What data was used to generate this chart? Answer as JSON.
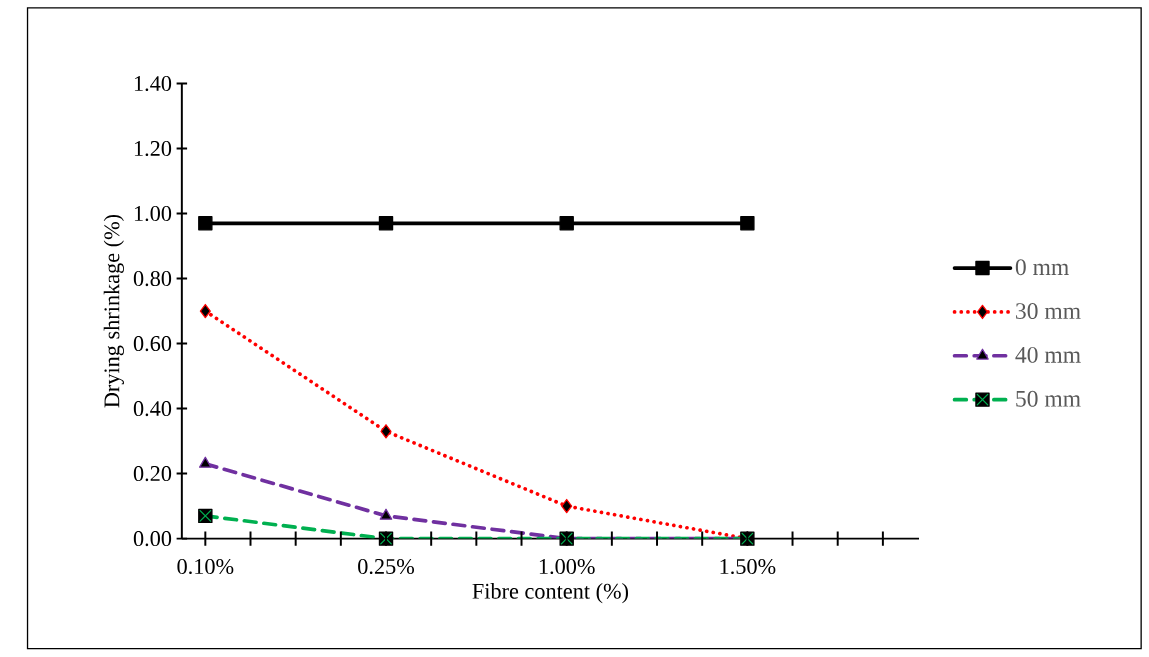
{
  "chart_data": {
    "type": "line",
    "xlabel": "Fibre content (%)",
    "ylabel": "Drying shrinkage (%)",
    "categories": [
      "0.10%",
      "0.25%",
      "1.00%",
      "1.50%"
    ],
    "ylim": [
      0,
      1.4
    ],
    "yticks": [
      {
        "value": 0,
        "label": "0.00"
      },
      {
        "value": 0.2,
        "label": "0.20"
      },
      {
        "value": 0.4,
        "label": "0.40"
      },
      {
        "value": 0.6,
        "label": "0.60"
      },
      {
        "value": 0.8,
        "label": "0.80"
      },
      {
        "value": 1.0,
        "label": "1.00"
      },
      {
        "value": 1.2,
        "label": "1.20"
      },
      {
        "value": 1.4,
        "label": "1.40"
      }
    ],
    "grid": false,
    "legend": "right",
    "series": [
      {
        "name": "0 mm",
        "color": "#000000",
        "marker": "square",
        "line_style": "solid",
        "values": [
          0.97,
          0.97,
          0.97,
          0.97
        ]
      },
      {
        "name": "30 mm",
        "color": "#ff0000",
        "marker": "diamond",
        "line_style": "dotted",
        "values": [
          0.7,
          0.33,
          0.1,
          0.0
        ]
      },
      {
        "name": "40 mm",
        "color": "#7030a0",
        "marker": "triangle",
        "line_style": "dashed",
        "values": [
          0.23,
          0.07,
          0.0,
          0.0
        ]
      },
      {
        "name": "50 mm",
        "color": "#00b050",
        "marker": "cross",
        "line_style": "dashed",
        "values": [
          0.07,
          0.0,
          0.0,
          0.0
        ]
      }
    ]
  }
}
